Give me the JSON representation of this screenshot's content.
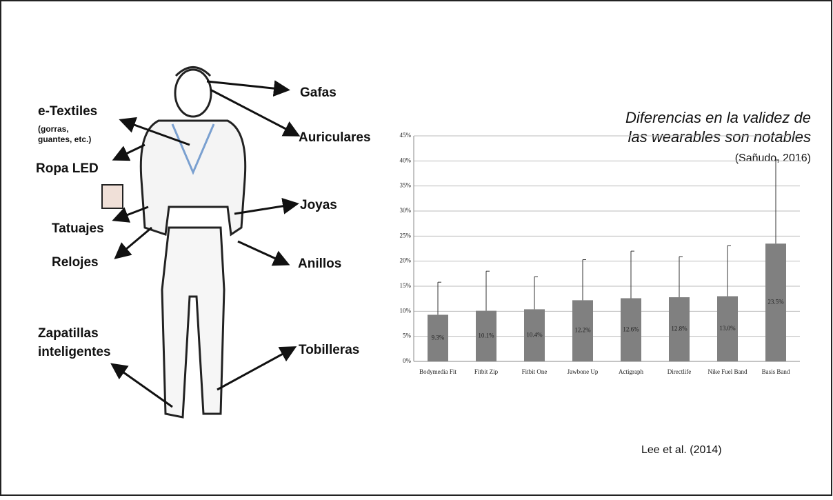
{
  "illustration": {
    "labels": [
      "e-Textiles",
      "(gorras,",
      "guantes, etc.)",
      "Ropa LED",
      "Tatuajes",
      "Relojes",
      "Zapatillas",
      "inteligentes",
      "Gafas",
      "Auriculares",
      "Joyas",
      "Anillos",
      "Tobilleras"
    ]
  },
  "chart_data": {
    "type": "bar",
    "title_lines": [
      "Diferencias en la validez de",
      "las wearables son notables"
    ],
    "subtitle": "(Sañudo, 2016)",
    "source": "Lee et al. (2014)",
    "categories": [
      "Bodymedia Fit",
      "Fitbit Zip",
      "Fitbit One",
      "Jawbone Up",
      "Actigraph",
      "Directlife",
      "Nike Fuel Band",
      "Basis Band"
    ],
    "values": [
      9.3,
      10.1,
      10.4,
      12.2,
      12.6,
      12.8,
      13.0,
      23.5
    ],
    "value_labels": [
      "9.3%",
      "10.1%",
      "10.4%",
      "12.2%",
      "12.6%",
      "12.8%",
      "13.0%",
      "23.5%"
    ],
    "errors": [
      6.5,
      7.9,
      6.5,
      8.1,
      9.4,
      8.1,
      10.1,
      16.7
    ],
    "color": "#808080",
    "ylim": [
      0,
      45
    ],
    "yticks": [
      {
        "value": 0,
        "label": "0%"
      },
      {
        "value": 5,
        "label": "5%"
      },
      {
        "value": 10,
        "label": "10%"
      },
      {
        "value": 15,
        "label": "15%"
      },
      {
        "value": 20,
        "label": "20%"
      },
      {
        "value": 25,
        "label": "25%"
      },
      {
        "value": 30,
        "label": "30%"
      },
      {
        "value": 35,
        "label": "35%"
      },
      {
        "value": 40,
        "label": "40%"
      },
      {
        "value": 45,
        "label": "45%"
      }
    ],
    "grid": true
  }
}
